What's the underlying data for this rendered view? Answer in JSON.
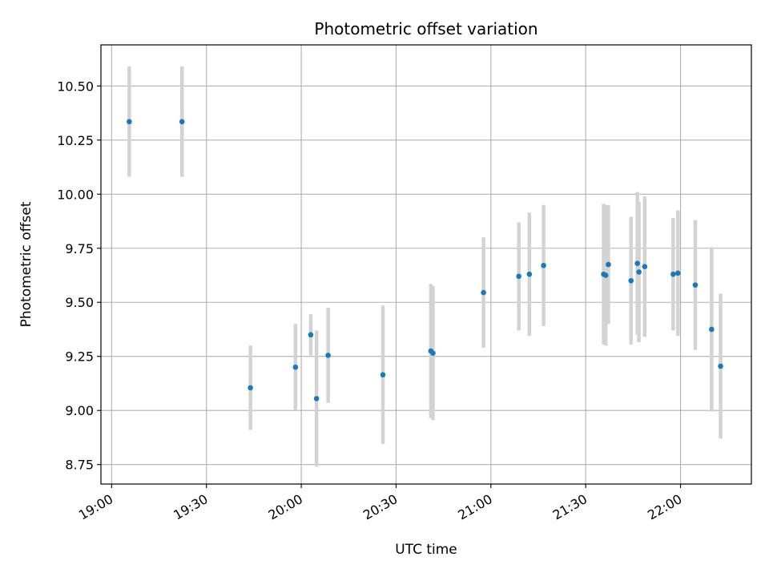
{
  "chart_data": {
    "type": "scatter",
    "title": "Photometric offset variation",
    "xlabel": "UTC time",
    "ylabel": "Photometric offset",
    "x_ticks": [
      "19:00",
      "19:30",
      "20:00",
      "20:30",
      "21:00",
      "21:30",
      "22:00"
    ],
    "y_ticks": [
      "8.75",
      "9.00",
      "9.25",
      "9.50",
      "9.75",
      "10.00",
      "10.25",
      "10.50"
    ],
    "xlim": [
      "18:56:37",
      "22:22:25"
    ],
    "ylim": [
      8.66,
      10.69
    ],
    "grid": true,
    "legend": "none",
    "colors": {
      "point": "#1f77b4",
      "errorbar": "#d3d3d3",
      "grid": "#b0b0b0"
    },
    "points": [
      {
        "x": "19:05:35",
        "y": 10.335,
        "err": 0.255
      },
      {
        "x": "19:22:16",
        "y": 10.335,
        "err": 0.255
      },
      {
        "x": "19:43:55",
        "y": 9.105,
        "err": 0.195
      },
      {
        "x": "19:58:10",
        "y": 9.2,
        "err": 0.2
      },
      {
        "x": "20:03:00",
        "y": 9.35,
        "err": 0.095
      },
      {
        "x": "20:04:50",
        "y": 9.055,
        "err": 0.315
      },
      {
        "x": "20:08:30",
        "y": 9.255,
        "err": 0.22
      },
      {
        "x": "20:25:50",
        "y": 9.165,
        "err": 0.32
      },
      {
        "x": "20:41:00",
        "y": 9.275,
        "err": 0.31
      },
      {
        "x": "20:41:40",
        "y": 9.265,
        "err": 0.31
      },
      {
        "x": "20:57:40",
        "y": 9.545,
        "err": 0.255
      },
      {
        "x": "21:08:50",
        "y": 9.62,
        "err": 0.25
      },
      {
        "x": "21:12:10",
        "y": 9.63,
        "err": 0.285
      },
      {
        "x": "21:16:40",
        "y": 9.67,
        "err": 0.28
      },
      {
        "x": "21:35:40",
        "y": 9.63,
        "err": 0.325
      },
      {
        "x": "21:36:20",
        "y": 9.625,
        "err": 0.325
      },
      {
        "x": "21:37:10",
        "y": 9.675,
        "err": 0.275
      },
      {
        "x": "21:44:20",
        "y": 9.6,
        "err": 0.295
      },
      {
        "x": "21:46:20",
        "y": 9.68,
        "err": 0.33
      },
      {
        "x": "21:46:50",
        "y": 9.64,
        "err": 0.325
      },
      {
        "x": "21:48:40",
        "y": 9.665,
        "err": 0.325
      },
      {
        "x": "21:57:40",
        "y": 9.63,
        "err": 0.26
      },
      {
        "x": "21:59:10",
        "y": 9.635,
        "err": 0.29
      },
      {
        "x": "22:04:40",
        "y": 9.58,
        "err": 0.3
      },
      {
        "x": "22:09:50",
        "y": 9.375,
        "err": 0.38
      },
      {
        "x": "22:12:40",
        "y": 9.205,
        "err": 0.335
      }
    ]
  }
}
